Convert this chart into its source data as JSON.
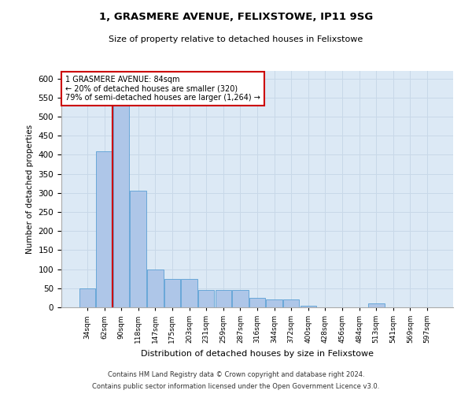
{
  "title1": "1, GRASMERE AVENUE, FELIXSTOWE, IP11 9SG",
  "title2": "Size of property relative to detached houses in Felixstowe",
  "xlabel": "Distribution of detached houses by size in Felixstowe",
  "ylabel": "Number of detached properties",
  "annotation_line1": "1 GRASMERE AVENUE: 84sqm",
  "annotation_line2": "← 20% of detached houses are smaller (320)",
  "annotation_line3": "79% of semi-detached houses are larger (1,264) →",
  "bar_categories": [
    "34sqm",
    "62sqm",
    "90sqm",
    "118sqm",
    "147sqm",
    "175sqm",
    "203sqm",
    "231sqm",
    "259sqm",
    "287sqm",
    "316sqm",
    "344sqm",
    "372sqm",
    "400sqm",
    "428sqm",
    "456sqm",
    "484sqm",
    "513sqm",
    "541sqm",
    "569sqm",
    "597sqm"
  ],
  "bar_values": [
    50,
    410,
    550,
    305,
    100,
    75,
    75,
    45,
    45,
    45,
    25,
    20,
    20,
    5,
    0,
    0,
    0,
    10,
    0,
    0,
    0
  ],
  "bar_color": "#aec6e8",
  "bar_edge_color": "#5a9fd4",
  "vline_color": "#cc0000",
  "vline_x_index": 1.5,
  "annotation_box_color": "#cc0000",
  "grid_color": "#c8d8e8",
  "background_color": "#dce9f5",
  "ylim": [
    0,
    620
  ],
  "yticks": [
    0,
    50,
    100,
    150,
    200,
    250,
    300,
    350,
    400,
    450,
    500,
    550,
    600
  ],
  "footer1": "Contains HM Land Registry data © Crown copyright and database right 2024.",
  "footer2": "Contains public sector information licensed under the Open Government Licence v3.0."
}
